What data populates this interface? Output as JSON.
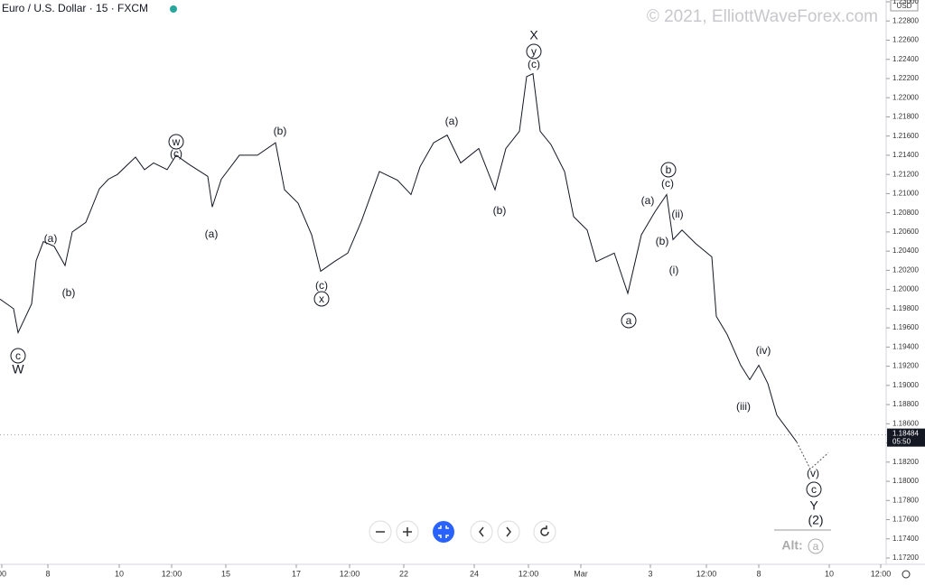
{
  "header": {
    "symbol": "Euro / U.S. Dollar · 15 · FXCM",
    "watermark": "© 2021, ElliottWaveForex.com",
    "currency": "USD"
  },
  "chart_data": {
    "type": "line",
    "color": "#131722",
    "x": [
      0,
      1.5,
      2,
      3.5,
      4,
      4.8,
      6,
      7.2,
      8,
      9.5,
      11,
      12,
      13,
      15,
      16,
      17,
      18.5,
      19.5,
      21,
      23,
      23.5,
      24.5,
      26.5,
      28.5,
      30.5,
      31.5,
      33,
      34.5,
      35.5,
      37,
      38.5,
      40,
      42,
      44,
      45.5,
      46.5,
      48,
      49.5,
      51,
      53,
      54.8,
      56,
      57.5,
      58.3,
      59,
      59.8,
      61,
      62.5,
      63.5,
      65,
      66,
      68,
      69.5,
      71,
      72.5,
      73.8,
      74.5,
      75.5,
      77,
      78.8,
      79.3,
      80.5,
      82,
      83,
      84,
      85,
      86,
      87.5,
      88.2
    ],
    "values": [
      1.199,
      1.198,
      1.1955,
      1.1985,
      1.203,
      1.205,
      1.2045,
      1.2025,
      1.206,
      1.207,
      1.2105,
      1.2115,
      1.212,
      1.2138,
      1.2125,
      1.2132,
      1.2125,
      1.214,
      1.213,
      1.2118,
      1.2086,
      1.2115,
      1.214,
      1.214,
      1.2153,
      1.2104,
      1.209,
      1.2057,
      1.2019,
      1.2029,
      1.2038,
      1.2071,
      1.2123,
      1.2114,
      1.2099,
      1.2128,
      1.2153,
      1.2161,
      1.2132,
      1.2147,
      1.2104,
      1.2147,
      1.2165,
      1.2222,
      1.2225,
      1.2165,
      1.2151,
      1.2123,
      1.2076,
      1.2062,
      1.2029,
      1.2038,
      1.1996,
      1.2057,
      1.2081,
      1.2099,
      1.2052,
      1.2062,
      1.2048,
      1.2034,
      1.1972,
      1.1953,
      1.1921,
      1.1906,
      1.1921,
      1.1902,
      1.1869,
      1.185,
      1.1841
    ],
    "xlim": [
      0,
      98
    ],
    "ylim": [
      1.172,
      1.23
    ],
    "xticks": [
      {
        "value": 0.2,
        "label": "00"
      },
      {
        "value": 5.3,
        "label": "8"
      },
      {
        "value": 13.2,
        "label": "10"
      },
      {
        "value": 19,
        "label": "12:00"
      },
      {
        "value": 25,
        "label": "15"
      },
      {
        "value": 32.8,
        "label": "17"
      },
      {
        "value": 38.7,
        "label": "12:00"
      },
      {
        "value": 44.7,
        "label": "22"
      },
      {
        "value": 52.5,
        "label": "24"
      },
      {
        "value": 58.5,
        "label": "12:00"
      },
      {
        "value": 64.3,
        "label": "Mar"
      },
      {
        "value": 72,
        "label": "3"
      },
      {
        "value": 78.2,
        "label": "12:00"
      },
      {
        "value": 84,
        "label": "8"
      },
      {
        "value": 91.8,
        "label": "10"
      },
      {
        "value": 97.5,
        "label": "12:00"
      }
    ],
    "yticks": [
      {
        "value": 1.172,
        "label": "1.17200"
      },
      {
        "value": 1.174,
        "label": "1.17400"
      },
      {
        "value": 1.176,
        "label": "1.17600"
      },
      {
        "value": 1.178,
        "label": "1.17800"
      },
      {
        "value": 1.18,
        "label": "1.18000"
      },
      {
        "value": 1.182,
        "label": "1.18200"
      },
      {
        "value": 1.184,
        "label": "1.18400"
      },
      {
        "value": 1.186,
        "label": "1.18600"
      },
      {
        "value": 1.188,
        "label": "1.18800"
      },
      {
        "value": 1.19,
        "label": "1.19000"
      },
      {
        "value": 1.192,
        "label": "1.19200"
      },
      {
        "value": 1.194,
        "label": "1.19400"
      },
      {
        "value": 1.196,
        "label": "1.19600"
      },
      {
        "value": 1.198,
        "label": "1.19800"
      },
      {
        "value": 1.2,
        "label": "1.20000"
      },
      {
        "value": 1.202,
        "label": "1.20200"
      },
      {
        "value": 1.204,
        "label": "1.20400"
      },
      {
        "value": 1.206,
        "label": "1.20600"
      },
      {
        "value": 1.208,
        "label": "1.20800"
      },
      {
        "value": 1.21,
        "label": "1.21000"
      },
      {
        "value": 1.212,
        "label": "1.21200"
      },
      {
        "value": 1.214,
        "label": "1.21400"
      },
      {
        "value": 1.216,
        "label": "1.21600"
      },
      {
        "value": 1.218,
        "label": "1.21800"
      },
      {
        "value": 1.22,
        "label": "1.22000"
      },
      {
        "value": 1.222,
        "label": "1.22200"
      },
      {
        "value": 1.224,
        "label": "1.22400"
      },
      {
        "value": 1.226,
        "label": "1.22600"
      },
      {
        "value": 1.228,
        "label": "1.22800"
      },
      {
        "value": 1.23,
        "label": "1.23000"
      }
    ],
    "last_price": {
      "value": 1.18484,
      "label": "1.18484",
      "countdown": "05:50"
    },
    "annotations": [
      {
        "text": "c",
        "circled": true
      },
      {
        "text": "W",
        "circled": false
      },
      {
        "text": "(a)",
        "circled": false
      },
      {
        "text": "(b)",
        "circled": false
      },
      {
        "text": "w",
        "circled": true
      },
      {
        "text": "(c)",
        "circled": false
      },
      {
        "text": "(a)",
        "circled": false
      },
      {
        "text": "(b)",
        "circled": false
      },
      {
        "text": "(c)",
        "circled": false
      },
      {
        "text": "x",
        "circled": true
      },
      {
        "text": "(a)",
        "circled": false
      },
      {
        "text": "(b)",
        "circled": false
      },
      {
        "text": "X",
        "circled": false
      },
      {
        "text": "y",
        "circled": true
      },
      {
        "text": "(c)",
        "circled": false
      },
      {
        "text": "a",
        "circled": true
      },
      {
        "text": "(a)",
        "circled": false
      },
      {
        "text": "b",
        "circled": true
      },
      {
        "text": "(c)",
        "circled": false
      },
      {
        "text": "(ii)",
        "circled": false
      },
      {
        "text": "(b)",
        "circled": false
      },
      {
        "text": "(i)",
        "circled": false
      },
      {
        "text": "(iv)",
        "circled": false
      },
      {
        "text": "(iii)",
        "circled": false
      },
      {
        "text": "(v)",
        "circled": false
      },
      {
        "text": "c",
        "circled": true
      },
      {
        "text": "Y",
        "circled": false
      },
      {
        "text": "(2)",
        "circled": false
      }
    ],
    "alt": {
      "text": "Alt:",
      "circled_label": "a"
    }
  }
}
